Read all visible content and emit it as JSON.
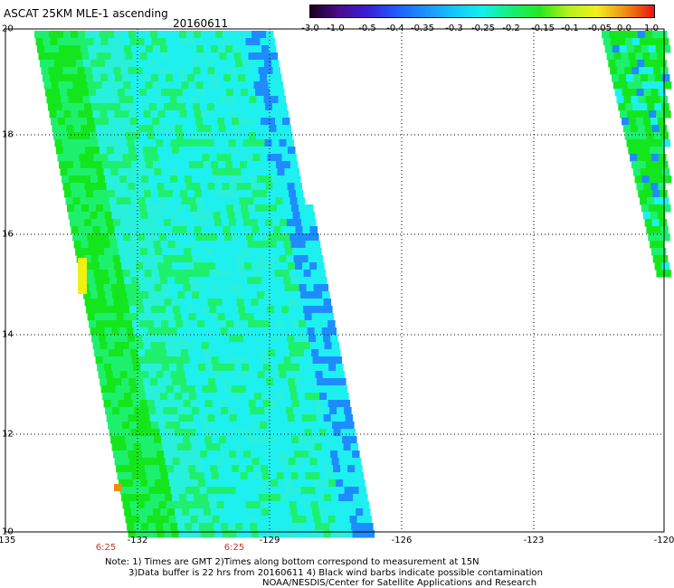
{
  "header": {
    "title": "ASCAT 25KM MLE-1 ascending",
    "date": "20160611"
  },
  "colorbar": {
    "labels": [
      "-3.0",
      "-1.0",
      "-0.5",
      "-0.4",
      "-0.35",
      "-0.3",
      "-0.25",
      "-0.2",
      "-0.15",
      "-0.1",
      "-0.05",
      "0.0",
      "1.0"
    ],
    "colors": [
      "#1a0020",
      "#4b0a8c",
      "#3a1fd6",
      "#1f5cff",
      "#1e90ff",
      "#12c6ff",
      "#14f0ea",
      "#14f07a",
      "#28e81e",
      "#b4f01e",
      "#f0f01e",
      "#f08c14",
      "#e81414"
    ]
  },
  "axes": {
    "lat_labels": [
      "20",
      "18",
      "16",
      "14",
      "12",
      "10"
    ],
    "lon_labels": [
      "-135",
      "-132",
      "-129",
      "-126",
      "-123",
      "-120"
    ],
    "times": [
      "6:25",
      "6:25"
    ]
  },
  "map": {
    "swath_colors": {
      "cyan": "#1ef0f0",
      "light_cyan": "#28f0dc",
      "green": "#1ef06e",
      "bright_green": "#14e61e",
      "blue": "#1e8cff",
      "yellow": "#f0f014",
      "orange": "#f08c14"
    }
  },
  "notes": {
    "line1": "Note: 1) Times are GMT  2)Times along bottom correspond to measurement at 15N",
    "line2": "3)Data buffer is 22 hrs from 20160611  4) Black wind barbs indicate possible contamination",
    "line3": "NOAA/NESDIS/Center for Satellite Applications and Research"
  }
}
